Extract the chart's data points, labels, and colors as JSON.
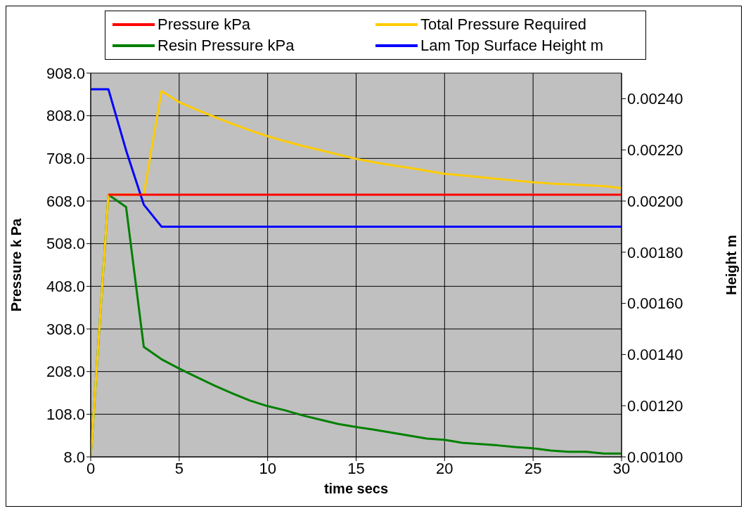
{
  "chart_data": {
    "type": "line",
    "xlabel": "time secs",
    "ylabel": "Pressure k Pa",
    "y2label": "Height m",
    "xlim": [
      0,
      30
    ],
    "xticks": [
      0,
      5,
      10,
      15,
      20,
      25,
      30
    ],
    "ylim": [
      8,
      908
    ],
    "yticks": [
      {
        "value": 8,
        "label": "8.0"
      },
      {
        "value": 108,
        "label": "108.0"
      },
      {
        "value": 208,
        "label": "208.0"
      },
      {
        "value": 308,
        "label": "308.0"
      },
      {
        "value": 408,
        "label": "408.0"
      },
      {
        "value": 508,
        "label": "508.0"
      },
      {
        "value": 608,
        "label": "608.0"
      },
      {
        "value": 708,
        "label": "708.0"
      },
      {
        "value": 808,
        "label": "808.0"
      },
      {
        "value": 908,
        "label": "908.0"
      }
    ],
    "y2lim": [
      0.001,
      0.0025
    ],
    "y2ticks": [
      {
        "value": 0.001,
        "label": "0.00100"
      },
      {
        "value": 0.0012,
        "label": "0.00120"
      },
      {
        "value": 0.0014,
        "label": "0.00140"
      },
      {
        "value": 0.0016,
        "label": "0.00160"
      },
      {
        "value": 0.0018,
        "label": "0.00180"
      },
      {
        "value": 0.002,
        "label": "0.00200"
      },
      {
        "value": 0.0022,
        "label": "0.00220"
      },
      {
        "value": 0.0024,
        "label": "0.00240"
      }
    ],
    "grid": true,
    "legend": "top",
    "marker": "none",
    "line_style": "solid",
    "series": [
      {
        "name": "Pressure kPa",
        "color": "#ff0000",
        "x": [
          1,
          30
        ],
        "values": [
          623,
          623
        ]
      },
      {
        "name": "Resin Pressure kPa",
        "color": "#008000",
        "x": [
          0,
          1,
          2,
          3,
          4,
          5,
          6,
          7,
          8,
          9,
          10,
          11,
          12,
          13,
          14,
          15,
          16,
          17,
          18,
          19,
          20,
          21,
          22,
          23,
          24,
          25,
          26,
          27,
          28,
          29,
          30
        ],
        "values": [
          8,
          623,
          594,
          266,
          237,
          215,
          195,
          175,
          157,
          140,
          127,
          117,
          105,
          95,
          85,
          78,
          72,
          65,
          58,
          51,
          48,
          41,
          38,
          35,
          31,
          28,
          23,
          20,
          20,
          16,
          16
        ]
      },
      {
        "name": "Total Pressure Required",
        "color": "#ffcc00",
        "x": [
          0,
          1,
          2,
          3,
          4,
          5,
          6,
          7,
          8,
          9,
          10,
          11,
          12,
          13,
          14,
          15,
          16,
          17,
          18,
          19,
          20,
          21,
          22,
          23,
          24,
          25,
          26,
          27,
          28,
          29,
          30
        ],
        "values": [
          8,
          623,
          623,
          623,
          866,
          840,
          822,
          805,
          789,
          774,
          760,
          748,
          737,
          727,
          717,
          707,
          699,
          692,
          686,
          679,
          672,
          668,
          664,
          660,
          656,
          652,
          649,
          647,
          645,
          643,
          638
        ]
      },
      {
        "name": "Lam Top Surface Height m",
        "color": "#0000ff",
        "axis": "y2",
        "x": [
          0,
          1,
          2,
          3,
          4,
          30
        ],
        "values": [
          0.002437,
          0.002437,
          0.002198,
          0.001986,
          0.0019,
          0.0019
        ]
      }
    ]
  }
}
